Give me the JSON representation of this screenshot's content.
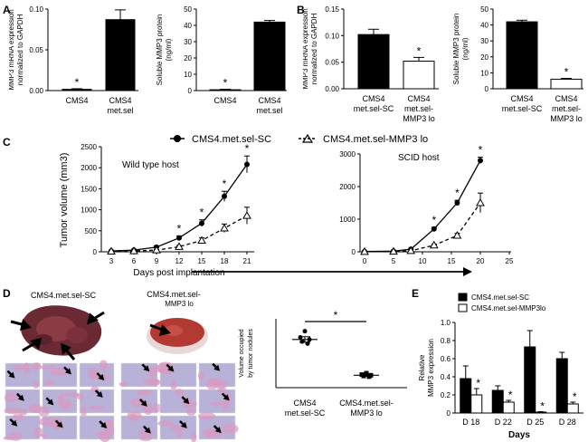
{
  "panel_letters": {
    "a": "A",
    "b": "B",
    "c": "C",
    "d": "D",
    "e": "E"
  },
  "chart_data": [
    {
      "id": "A1",
      "type": "bar",
      "ylabel": "MMP3 mRNA expression normalized to GAPDH",
      "ylabel_lines": [
        "MMP3 mRNA expression",
        "normalized to GAPDH"
      ],
      "categories": [
        "CMS4",
        "CMS4\nmet.sel"
      ],
      "category_lines": [
        [
          "CMS4"
        ],
        [
          "CMS4",
          "met.sel"
        ]
      ],
      "values": [
        0.0015,
        0.087
      ],
      "errors": [
        0.0008,
        0.012
      ],
      "fills": [
        "#000000",
        "#000000"
      ],
      "ylim": [
        0,
        0.1
      ],
      "yticks": [
        0.0,
        0.05,
        0.1
      ],
      "ytick_labels": [
        "0.00",
        "0.05",
        "0.10"
      ],
      "annotations": [
        {
          "category": 0,
          "text": "*"
        }
      ]
    },
    {
      "id": "A2",
      "type": "bar",
      "ylabel": "Soluble MMP3 protein (ng/ml)",
      "ylabel_lines": [
        "Soluble MMP3 protein",
        "(ng/ml)"
      ],
      "categories": [
        "CMS4",
        "CMS4\nmet.sel"
      ],
      "category_lines": [
        [
          "CMS4"
        ],
        [
          "CMS4",
          "met.sel"
        ]
      ],
      "values": [
        0.5,
        42
      ],
      "errors": [
        0.3,
        1.0
      ],
      "fills": [
        "#000000",
        "#000000"
      ],
      "ylim": [
        0,
        50
      ],
      "yticks": [
        0,
        10,
        20,
        30,
        40,
        50
      ],
      "ytick_labels": [
        "0",
        "10",
        "20",
        "30",
        "40",
        "50"
      ],
      "annotations": [
        {
          "category": 0,
          "text": "*"
        }
      ]
    },
    {
      "id": "B1",
      "type": "bar",
      "ylabel": "MMP3 mRNA expression normalized to GAPDH",
      "ylabel_lines": [
        "MMP3 mRNA expression",
        "normalized to GAPDH"
      ],
      "categories": [
        "CMS4\nmet.sel-SC",
        "CMS4\nmet.sel-\nMMP3 lo"
      ],
      "category_lines": [
        [
          "CMS4",
          "met.sel-SC"
        ],
        [
          "CMS4",
          "met.sel-",
          "MMP3 lo"
        ]
      ],
      "values": [
        0.102,
        0.052
      ],
      "errors": [
        0.01,
        0.007
      ],
      "fills": [
        "#000000",
        "#ffffff"
      ],
      "ylim": [
        0,
        0.15
      ],
      "yticks": [
        0.0,
        0.05,
        0.1,
        0.15
      ],
      "ytick_labels": [
        "0.00",
        "0.05",
        "0.10",
        "0.15"
      ],
      "annotations": [
        {
          "category": 1,
          "text": "*"
        }
      ]
    },
    {
      "id": "B2",
      "type": "bar",
      "ylabel": "Soluble MMP3 protein (ng/ml)",
      "ylabel_lines": [
        "Soluble MMP3 protein",
        "(ng/ml)"
      ],
      "categories": [
        "CMS4\nmet.sel-SC",
        "CMS4\nmet.sel-\nMMP3 lo"
      ],
      "category_lines": [
        [
          "CMS4",
          "met.sel-SC"
        ],
        [
          "CMS4",
          "met.sel-",
          "MMP3 lo"
        ]
      ],
      "values": [
        42,
        6
      ],
      "errors": [
        1.0,
        0.5
      ],
      "fills": [
        "#000000",
        "#ffffff"
      ],
      "ylim": [
        0,
        50
      ],
      "yticks": [
        0,
        10,
        20,
        30,
        40,
        50
      ],
      "ytick_labels": [
        "0",
        "10",
        "20",
        "30",
        "40",
        "50"
      ],
      "annotations": [
        {
          "category": 1,
          "text": "*"
        }
      ]
    },
    {
      "id": "C1",
      "type": "line",
      "title": "Wild type host",
      "xlabel": "Days post implantation",
      "ylabel": "Tumor volume (mm3)",
      "x": [
        3,
        6,
        9,
        12,
        15,
        18,
        21
      ],
      "xticks": [
        3,
        6,
        9,
        12,
        15,
        18,
        21
      ],
      "xlim": [
        3,
        21
      ],
      "ylim": [
        0,
        2500
      ],
      "yticks": [
        0,
        500,
        1000,
        1500,
        2000,
        2500
      ],
      "series": [
        {
          "name": "CMS4.met.sel-SC",
          "values": [
            20,
            40,
            110,
            330,
            680,
            1320,
            2080
          ],
          "errors": [
            10,
            15,
            30,
            50,
            80,
            120,
            200
          ],
          "marker": "circle",
          "dash": false
        },
        {
          "name": "CMS4.met.sel-MMP3 lo",
          "values": [
            10,
            20,
            40,
            120,
            270,
            560,
            860
          ],
          "errors": [
            5,
            10,
            15,
            30,
            60,
            100,
            200
          ],
          "marker": "triangle",
          "dash": true
        }
      ],
      "significance_x": [
        12,
        15,
        18,
        21
      ]
    },
    {
      "id": "C2",
      "type": "line",
      "title": "SCID host",
      "xlabel": "",
      "x": [
        0,
        5,
        8,
        12,
        16,
        20
      ],
      "xticks": [
        0,
        5,
        10,
        15,
        20,
        25
      ],
      "xlim": [
        0,
        25
      ],
      "ylim": [
        0,
        3000
      ],
      "yticks": [
        0,
        1000,
        2000,
        3000
      ],
      "series": [
        {
          "name": "CMS4.met.sel-SC",
          "values": [
            10,
            20,
            80,
            700,
            1500,
            2800
          ],
          "errors": [
            5,
            5,
            20,
            50,
            80,
            100
          ],
          "marker": "circle",
          "dash": false
        },
        {
          "name": "CMS4.met.sel-MMP3 lo",
          "values": [
            5,
            10,
            30,
            200,
            500,
            1500
          ],
          "errors": [
            3,
            5,
            10,
            30,
            60,
            300
          ],
          "marker": "triangle",
          "dash": true
        }
      ],
      "significance_x": [
        12,
        16,
        20
      ]
    },
    {
      "id": "D",
      "type": "scatter",
      "ylabel": "Volume occupied by tumor nodules",
      "ylabel_lines": [
        "Volume occupied",
        "by tumor nodules"
      ],
      "categories": [
        "CMS4\nmet.sel-SC",
        "CMS4.met.sel-\nMMP3 lo"
      ],
      "category_lines": [
        [
          "CMS4",
          "met.sel-SC"
        ],
        [
          "CMS4.met.sel-",
          "MMP3 lo"
        ]
      ],
      "points": [
        [
          82,
          73,
          70,
          67,
          64
        ],
        [
          21,
          19,
          18,
          17,
          16
        ]
      ],
      "means": [
        70,
        18
      ],
      "sem": [
        4,
        1.5
      ],
      "ylim": [
        0,
        100
      ],
      "annotation": "*"
    },
    {
      "id": "E",
      "type": "bar",
      "xlabel": "Days",
      "ylabel": "Relative MMP3 expression",
      "ylabel_lines": [
        "Relative",
        "MMP3 expression"
      ],
      "categories": [
        "D 18",
        "D 22",
        "D 25",
        "D 28"
      ],
      "ylim": [
        0,
        1.0
      ],
      "yticks": [
        0,
        0.2,
        0.4,
        0.6,
        0.8,
        1.0
      ],
      "ytick_labels": [
        "0",
        "0.2",
        "0.4",
        "0.6",
        "0.8",
        "1.0"
      ],
      "series": [
        {
          "name": "CMS4.met.sel-SC",
          "values": [
            0.38,
            0.25,
            0.73,
            0.6
          ],
          "errors": [
            0.14,
            0.05,
            0.18,
            0.07
          ],
          "fill": "#000000"
        },
        {
          "name": "CMS4.met.sel-MMP3lo",
          "values": [
            0.2,
            0.12,
            0.01,
            0.1
          ],
          "errors": [
            0.07,
            0.02,
            0.005,
            0.02
          ],
          "fill": "#ffffff"
        }
      ],
      "annotations_series": 1,
      "annotation": "*"
    }
  ],
  "legend_c": {
    "sc": "CMS4.met.sel-SC",
    "lo": "CMS4.met.sel-MMP3 lo"
  },
  "panel_d": {
    "photo_label_sc": "CMS4.met.sel-SC",
    "photo_label_lo_line1": "CMS4.met.sel-",
    "photo_label_lo_line2": "MMP3 lo"
  },
  "colors": {
    "bar_dark": "#000000",
    "lung_sc": "#6b2a33",
    "lung_lo": "#b23a32",
    "histo_bg": "#b8b2d8",
    "histo_tissue": "#d99ac2"
  }
}
